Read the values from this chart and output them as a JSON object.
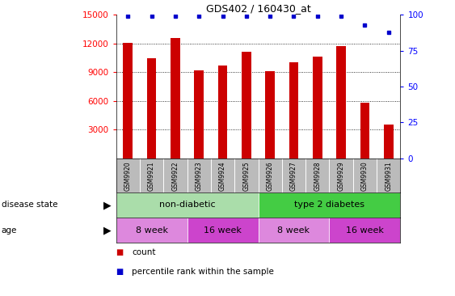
{
  "title": "GDS402 / 160430_at",
  "samples": [
    "GSM9920",
    "GSM9921",
    "GSM9922",
    "GSM9923",
    "GSM9924",
    "GSM9925",
    "GSM9926",
    "GSM9927",
    "GSM9928",
    "GSM9929",
    "GSM9930",
    "GSM9931"
  ],
  "counts": [
    12050,
    10500,
    12600,
    9200,
    9700,
    11100,
    9150,
    10000,
    10600,
    11700,
    5800,
    3500
  ],
  "percentile_ranks": [
    99,
    99,
    99,
    99,
    99,
    99,
    99,
    99,
    99,
    99,
    93,
    88
  ],
  "bar_color": "#cc0000",
  "dot_color": "#0000cc",
  "ylim_left": [
    0,
    15000
  ],
  "yticks_left": [
    3000,
    6000,
    9000,
    12000,
    15000
  ],
  "ylim_right": [
    0,
    100
  ],
  "yticks_right": [
    0,
    25,
    50,
    75,
    100
  ],
  "disease_state_groups": [
    {
      "label": "non-diabetic",
      "start": 0,
      "end": 5,
      "color": "#aaddaa"
    },
    {
      "label": "type 2 diabetes",
      "start": 6,
      "end": 11,
      "color": "#44cc44"
    }
  ],
  "age_groups": [
    {
      "label": "8 week",
      "start": 0,
      "end": 2,
      "color": "#dd88dd"
    },
    {
      "label": "16 week",
      "start": 3,
      "end": 5,
      "color": "#cc44cc"
    },
    {
      "label": "8 week",
      "start": 6,
      "end": 8,
      "color": "#dd88dd"
    },
    {
      "label": "16 week",
      "start": 9,
      "end": 11,
      "color": "#cc44cc"
    }
  ],
  "disease_state_label": "disease state",
  "age_label": "age",
  "legend_count_label": "count",
  "legend_percentile_label": "percentile rank within the sample",
  "background_color": "#ffffff",
  "tick_area_color": "#bbbbbb",
  "bar_width": 0.4
}
